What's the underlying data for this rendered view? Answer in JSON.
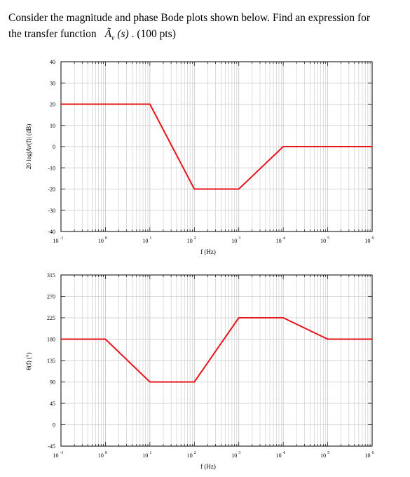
{
  "problem": {
    "line1": "Consider the magnitude and phase Bode plots shown below.  Find an expression for",
    "line2_prefix": "the transfer function",
    "tf_symbol": "Ã",
    "tf_subscript": "v",
    "tf_arg": "(s)",
    "line2_suffix": ".  (100 pts)"
  },
  "colors": {
    "curve": "#e8141b",
    "grid": "#c8c8c8",
    "axis": "#000000"
  },
  "chart_data": [
    {
      "type": "line",
      "title": "",
      "xlabel": "f (Hz)",
      "ylabel": "20 log|Av(f)| (dB)",
      "xscale": "log",
      "xlim": [
        0.1,
        1000000
      ],
      "ylim": [
        -40,
        40
      ],
      "xticks": [
        {
          "value": 0.1,
          "base": "10",
          "exp": "-1"
        },
        {
          "value": 1,
          "base": "10",
          "exp": "0"
        },
        {
          "value": 10,
          "base": "10",
          "exp": "1"
        },
        {
          "value": 100,
          "base": "10",
          "exp": "2"
        },
        {
          "value": 1000,
          "base": "10",
          "exp": "3"
        },
        {
          "value": 10000,
          "base": "10",
          "exp": "4"
        },
        {
          "value": 100000,
          "base": "10",
          "exp": "5"
        },
        {
          "value": 1000000,
          "base": "10",
          "exp": "6"
        }
      ],
      "yticks": [
        40,
        30,
        20,
        10,
        0,
        -10,
        -20,
        -30,
        -40
      ],
      "grid": true,
      "series": [
        {
          "x": [
            0.1,
            10,
            100,
            1000,
            10000,
            1000000
          ],
          "y": [
            20,
            20,
            -20,
            -20,
            0,
            0
          ]
        }
      ]
    },
    {
      "type": "line",
      "title": "",
      "xlabel": "f (Hz)",
      "ylabel": "θ(f) (°)",
      "xscale": "log",
      "xlim": [
        0.1,
        1000000
      ],
      "ylim": [
        -45,
        315
      ],
      "xticks": [
        {
          "value": 0.1,
          "base": "10",
          "exp": "-1"
        },
        {
          "value": 1,
          "base": "10",
          "exp": "0"
        },
        {
          "value": 10,
          "base": "10",
          "exp": "1"
        },
        {
          "value": 100,
          "base": "10",
          "exp": "2"
        },
        {
          "value": 1000,
          "base": "10",
          "exp": "3"
        },
        {
          "value": 10000,
          "base": "10",
          "exp": "4"
        },
        {
          "value": 100000,
          "base": "10",
          "exp": "5"
        },
        {
          "value": 1000000,
          "base": "10",
          "exp": "6"
        }
      ],
      "yticks": [
        315,
        270,
        225,
        180,
        135,
        90,
        45,
        0,
        -45
      ],
      "grid": true,
      "series": [
        {
          "x": [
            0.1,
            1,
            10,
            100,
            1000,
            10000,
            100000,
            1000000
          ],
          "y": [
            180,
            180,
            90,
            90,
            225,
            225,
            180,
            180
          ]
        }
      ]
    }
  ]
}
